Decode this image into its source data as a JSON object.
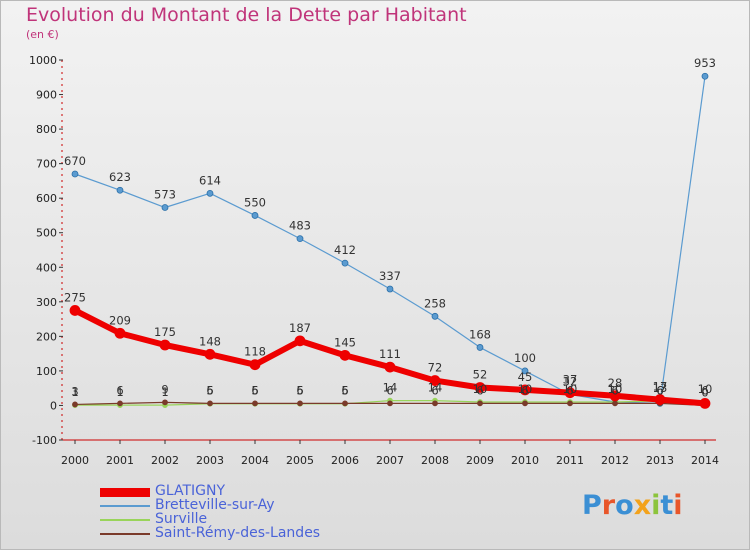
{
  "title": "Evolution du Montant de la Dette par Habitant",
  "subtitle": "(en €)",
  "brand": {
    "text": "Proxiti",
    "letter_colors": [
      "#3b8fd4",
      "#e8562a",
      "#3b8fd4",
      "#f3a21b",
      "#8cc43c",
      "#3b8fd4",
      "#e8562a"
    ]
  },
  "chart_data": {
    "type": "line",
    "categories": [
      "2000",
      "2001",
      "2002",
      "2003",
      "2004",
      "2005",
      "2006",
      "2007",
      "2008",
      "2009",
      "2010",
      "2011",
      "2012",
      "2013",
      "2014"
    ],
    "ylim": [
      -100,
      1000
    ],
    "yticks": [
      "-100",
      "0",
      "100",
      "200",
      "300",
      "400",
      "500",
      "600",
      "700",
      "800",
      "900",
      "1000"
    ],
    "grid": false,
    "legend_position": "bottom-left",
    "series": [
      {
        "name": "GLATIGNY",
        "color": "#ee0000",
        "values": [
          275,
          209,
          175,
          148,
          118,
          187,
          145,
          111,
          72,
          52,
          45,
          37,
          28,
          17,
          6
        ],
        "labels": [
          "275",
          "209",
          "175",
          "148",
          "118",
          "187",
          "145",
          "111",
          "72",
          "52",
          "45",
          "37",
          "28",
          "17",
          "6"
        ]
      },
      {
        "name": "Bretteville-sur-Ay",
        "color": "#5b9bd0",
        "values": [
          670,
          623,
          573,
          614,
          550,
          483,
          412,
          337,
          258,
          168,
          100,
          32,
          10,
          6,
          953
        ],
        "labels": [
          "670",
          "623",
          "573",
          "614",
          "550",
          "483",
          "412",
          "337",
          "258",
          "168",
          "100",
          "32",
          "10",
          "6",
          "953"
        ]
      },
      {
        "name": "Surville",
        "color": "#99d45a",
        "values": [
          1,
          1,
          1,
          5,
          5,
          5,
          5,
          14,
          14,
          10,
          10,
          10,
          10,
          13,
          10
        ],
        "labels": [
          "1",
          "1",
          "1",
          "5",
          "5",
          "5",
          "5",
          "14",
          "14",
          "10",
          "10",
          "10",
          "10",
          "13",
          "10"
        ]
      },
      {
        "name": "Saint-Rémy-des-Landes",
        "color": "#7a3a2a",
        "values": [
          3,
          6,
          9,
          6,
          6,
          6,
          6,
          6,
          6,
          6,
          6,
          6,
          6,
          6,
          0
        ],
        "labels": [
          "3",
          "6",
          "9",
          "6",
          "6",
          "6",
          "6",
          "6",
          "6",
          "6",
          "6",
          "6",
          "6",
          "6",
          "0"
        ]
      }
    ]
  }
}
